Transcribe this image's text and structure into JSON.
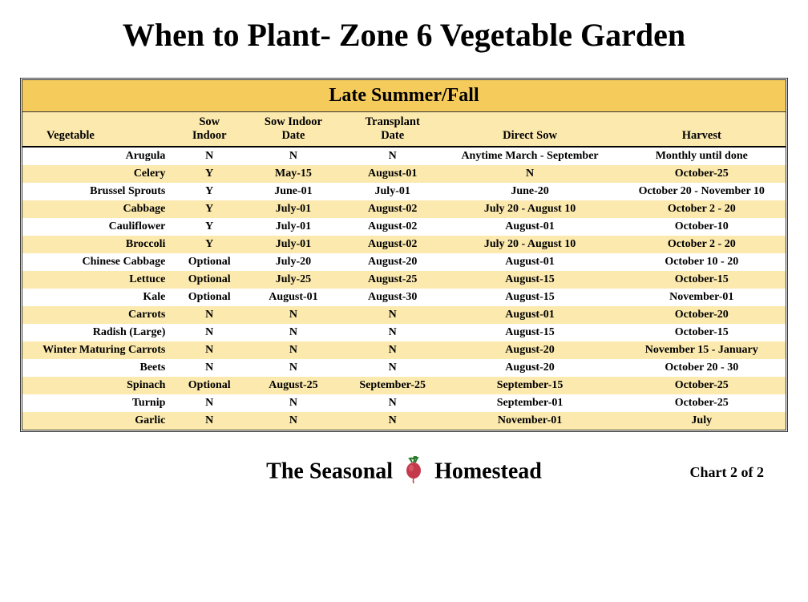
{
  "title": "When to Plant- Zone 6 Vegetable Garden",
  "banner": "Late Summer/Fall",
  "columns": {
    "c1": "Vegetable",
    "c2a": "Sow",
    "c2b": "Indoor",
    "c3a": "Sow Indoor",
    "c3b": "Date",
    "c4a": "Transplant",
    "c4b": "Date",
    "c5": "Direct Sow",
    "c6": "Harvest"
  },
  "rows": [
    {
      "veg": "Arugula",
      "sow": "N",
      "indoor": "N",
      "trans": "N",
      "direct": "Anytime March - September",
      "harvest": "Monthly until done"
    },
    {
      "veg": "Celery",
      "sow": "Y",
      "indoor": "May-15",
      "trans": "August-01",
      "direct": "N",
      "harvest": "October-25"
    },
    {
      "veg": "Brussel Sprouts",
      "sow": "Y",
      "indoor": "June-01",
      "trans": "July-01",
      "direct": "June-20",
      "harvest": "October 20 - November 10"
    },
    {
      "veg": "Cabbage",
      "sow": "Y",
      "indoor": "July-01",
      "trans": "August-02",
      "direct": "July 20 - August 10",
      "harvest": "October 2 - 20"
    },
    {
      "veg": "Cauliflower",
      "sow": "Y",
      "indoor": "July-01",
      "trans": "August-02",
      "direct": "August-01",
      "harvest": "October-10"
    },
    {
      "veg": "Broccoli",
      "sow": "Y",
      "indoor": "July-01",
      "trans": "August-02",
      "direct": "July 20 - August 10",
      "harvest": "October 2 - 20"
    },
    {
      "veg": "Chinese Cabbage",
      "sow": "Optional",
      "indoor": "July-20",
      "trans": "August-20",
      "direct": "August-01",
      "harvest": "October 10 - 20"
    },
    {
      "veg": "Lettuce",
      "sow": "Optional",
      "indoor": "July-25",
      "trans": "August-25",
      "direct": "August-15",
      "harvest": "October-15"
    },
    {
      "veg": "Kale",
      "sow": "Optional",
      "indoor": "August-01",
      "trans": "August-30",
      "direct": "August-15",
      "harvest": "November-01"
    },
    {
      "veg": "Carrots",
      "sow": "N",
      "indoor": "N",
      "trans": "N",
      "direct": "August-01",
      "harvest": "October-20"
    },
    {
      "veg": "Radish (Large)",
      "sow": "N",
      "indoor": "N",
      "trans": "N",
      "direct": "August-15",
      "harvest": "October-15"
    },
    {
      "veg": "Winter Maturing Carrots",
      "sow": "N",
      "indoor": "N",
      "trans": "N",
      "direct": "August-20",
      "harvest": "November 15 - January"
    },
    {
      "veg": "Beets",
      "sow": "N",
      "indoor": "N",
      "trans": "N",
      "direct": "August-20",
      "harvest": "October 20 - 30"
    },
    {
      "veg": "Spinach",
      "sow": "Optional",
      "indoor": "August-25",
      "trans": "September-25",
      "direct": "September-15",
      "harvest": "October-25"
    },
    {
      "veg": "Turnip",
      "sow": "N",
      "indoor": "N",
      "trans": "N",
      "direct": "September-01",
      "harvest": "October-25"
    },
    {
      "veg": "Garlic",
      "sow": "N",
      "indoor": "N",
      "trans": "N",
      "direct": "November-01",
      "harvest": "July"
    }
  ],
  "brand_left": "The Seasonal",
  "brand_right": "Homestead",
  "chart_label": "Chart 2 of 2",
  "colors": {
    "banner_bg": "#f5cc5b",
    "stripe_bg": "#fbe9ae",
    "border": "#333333"
  }
}
